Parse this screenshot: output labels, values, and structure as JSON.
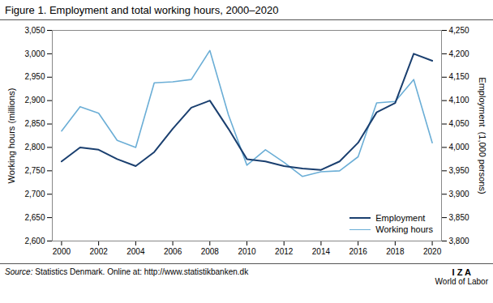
{
  "chart_data": {
    "type": "line",
    "title": "Figure 1. Employment and total working hours, 2000–2020",
    "annotations": [
      "Source:",
      "Statistics Denmark. Online at: http://www.statistikbanken.dk",
      "I Z A",
      "World of Labor"
    ],
    "x": [
      2000,
      2001,
      2002,
      2003,
      2004,
      2005,
      2006,
      2007,
      2008,
      2009,
      2010,
      2011,
      2012,
      2013,
      2014,
      2015,
      2016,
      2017,
      2018,
      2019,
      2020
    ],
    "xlim": [
      1999.5,
      2020.5
    ],
    "xticks": [
      2000,
      2002,
      2004,
      2006,
      2008,
      2010,
      2012,
      2014,
      2016,
      2018,
      2020
    ],
    "ylabel": "Working hours (millions)",
    "ylim": [
      2600,
      3050
    ],
    "yticks": [
      {
        "value": 2600,
        "label": "2,600"
      },
      {
        "value": 2650,
        "label": "2,650"
      },
      {
        "value": 2700,
        "label": "2,700"
      },
      {
        "value": 2750,
        "label": "2,750"
      },
      {
        "value": 2800,
        "label": "2,800"
      },
      {
        "value": 2850,
        "label": "2,850"
      },
      {
        "value": 2900,
        "label": "2,900"
      },
      {
        "value": 2950,
        "label": "2,950"
      },
      {
        "value": 3000,
        "label": "3,000"
      },
      {
        "value": 3050,
        "label": "3,050"
      }
    ],
    "y2label": "Employment  (1,000 persons)",
    "y2lim": [
      3800,
      4250
    ],
    "y2ticks": [
      {
        "value": 3800,
        "label": "3,800"
      },
      {
        "value": 3850,
        "label": "3,850"
      },
      {
        "value": 3900,
        "label": "3,900"
      },
      {
        "value": 3950,
        "label": "3,950"
      },
      {
        "value": 4000,
        "label": "4,000"
      },
      {
        "value": 4050,
        "label": "4,050"
      },
      {
        "value": 4100,
        "label": "4,100"
      },
      {
        "value": 4150,
        "label": "4,150"
      },
      {
        "value": 4200,
        "label": "4,200"
      },
      {
        "value": 4250,
        "label": "4,250"
      }
    ],
    "series": [
      {
        "name": "Employment",
        "color": "#1a3f6f",
        "axis": "y2",
        "values": [
          3970,
          4000,
          3995,
          3975,
          3960,
          3990,
          4040,
          4085,
          4100,
          4040,
          3975,
          3970,
          3960,
          3955,
          3952,
          3970,
          4010,
          4075,
          4095,
          4200,
          4185
        ]
      },
      {
        "name": "Working hours",
        "color": "#6baed6",
        "values": [
          2835,
          2887,
          2873,
          2815,
          2800,
          2938,
          2940,
          2945,
          3007,
          2870,
          2762,
          2795,
          2768,
          2738,
          2748,
          2750,
          2780,
          2895,
          2898,
          2945,
          2810
        ]
      }
    ],
    "legend": "lower right",
    "grid": false
  }
}
